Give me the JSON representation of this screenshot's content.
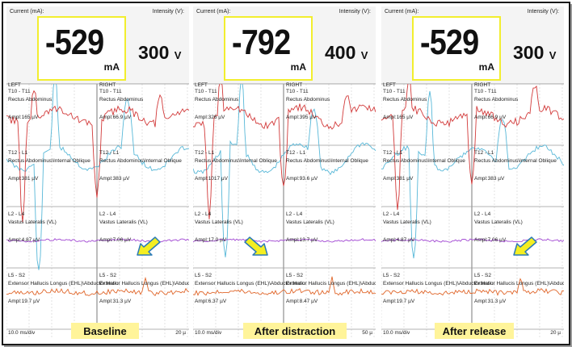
{
  "panels": [
    {
      "current_label": "Current (mA):",
      "intensity_label": "Intensity (V):",
      "current_value": "-529",
      "current_unit": "mA",
      "intensity_value": "300",
      "intensity_unit": "V",
      "left_side": "LEFT",
      "right_side": "RIGHT",
      "left_channels": [
        {
          "segment": "T10 - T11",
          "muscle": "Rectus Abdominus",
          "ampl": "Ampl:165 µV"
        },
        {
          "segment": "T12 - L1",
          "muscle": "Rectus Abdominus\\Internal Oblique",
          "ampl": "Ampl:381 µV"
        },
        {
          "segment": "L2 - L4",
          "muscle": "Vastus Lateralis (VL)",
          "ampl": "Ampl:4.87 µV"
        },
        {
          "segment": "L5 - S2",
          "muscle": "Extensor Hallucis Longus (EHL)\\Abductor Hallu",
          "ampl": "Ampl:19.7 µV"
        }
      ],
      "right_channels": [
        {
          "segment": "T10 - T11",
          "muscle": "Rectus Abdominus",
          "ampl": "Ampl:66.9 µV"
        },
        {
          "segment": "T12 - L1",
          "muscle": "Rectus Abdominus\\Internal Oblique",
          "ampl": "Ampl:383 µV"
        },
        {
          "segment": "L2 - L4",
          "muscle": "Vastus Lateralis (VL)",
          "ampl": "Ampl:7.06 µV"
        },
        {
          "segment": "L5 - S2",
          "muscle": "Extensor Hallucis Longus (EHL)\\Abductor Hallu",
          "ampl": "Ampl:31.3 µV"
        }
      ],
      "timebase": "10.0 ms/div",
      "sensitivity": "20 µ",
      "caption": "Baseline"
    },
    {
      "current_label": "Current (mA):",
      "intensity_label": "Intensity (V):",
      "current_value": "-792",
      "current_unit": "mA",
      "intensity_value": "400",
      "intensity_unit": "V",
      "left_side": "LEFT",
      "right_side": "RIGHT",
      "left_channels": [
        {
          "segment": "T10 - T11",
          "muscle": "Rectus Abdominus",
          "ampl": "Ampl:326 µV"
        },
        {
          "segment": "T12 - L1",
          "muscle": "Rectus Abdominus\\Internal Oblique",
          "ampl": "Ampl:1017 µV"
        },
        {
          "segment": "L2 - L4",
          "muscle": "Vastus Lateralis (VL)",
          "ampl": "Ampl:17.0 µV"
        },
        {
          "segment": "L5 - S2",
          "muscle": "Extensor Hallucis Longus (EHL)\\Abductor Hallu",
          "ampl": "Ampl:6.37 µV"
        }
      ],
      "right_channels": [
        {
          "segment": "T10 - T11",
          "muscle": "Rectus Abdominus",
          "ampl": "Ampl:395 µV"
        },
        {
          "segment": "T12 - L1",
          "muscle": "Rectus Abdominus\\Internal Oblique",
          "ampl": "Ampl:93.6 µV"
        },
        {
          "segment": "L2 - L4",
          "muscle": "Vastus Lateralis (VL)",
          "ampl": "Ampl:13.7 µV"
        },
        {
          "segment": "L5 - S2",
          "muscle": "Extensor Hallucis Longus (EHL)\\Abductor Hallu",
          "ampl": "Ampl:8.47 µV"
        }
      ],
      "timebase": "10.0 ms/div",
      "sensitivity": "50 µ",
      "caption": "After distraction"
    },
    {
      "current_label": "Current (mA):",
      "intensity_label": "Intensity (V):",
      "current_value": "-529",
      "current_unit": "mA",
      "intensity_value": "300",
      "intensity_unit": "V",
      "left_side": "LEFT",
      "right_side": "RIGHT",
      "left_channels": [
        {
          "segment": "T10 - T11",
          "muscle": "Rectus Abdominus",
          "ampl": "Ampl:165 µV"
        },
        {
          "segment": "T12 - L1",
          "muscle": "Rectus Abdominus\\Internal Oblique",
          "ampl": "Ampl:381 µV"
        },
        {
          "segment": "L2 - L4",
          "muscle": "Vastus Lateralis (VL)",
          "ampl": "Ampl:4.87 µV"
        },
        {
          "segment": "L5 - S2",
          "muscle": "Extensor Hallucis Longus (EHL)\\Abductor Hallu",
          "ampl": "Ampl:19.7 µV"
        }
      ],
      "right_channels": [
        {
          "segment": "T10 - T11",
          "muscle": "Rectus Abdominus",
          "ampl": "Ampl:66.9 µV"
        },
        {
          "segment": "T12 - L1",
          "muscle": "Rectus Abdominus\\Internal Oblique",
          "ampl": "Ampl:383 µV"
        },
        {
          "segment": "L2 - L4",
          "muscle": "Vastus Lateralis (VL)",
          "ampl": "Ampl:7.06 µV"
        },
        {
          "segment": "L5 - S2",
          "muscle": "Extensor Hallucis Longus (EHL)\\Abductor Hallu",
          "ampl": "Ampl:31.3 µV"
        }
      ],
      "timebase": "10.0 ms/div",
      "sensitivity": "20 µ",
      "caption": "After release"
    }
  ],
  "colors": {
    "rectus": "#d23a3a",
    "oblique": "#58b8d8",
    "vastus": "#a046d2",
    "ehl": "#e0662a",
    "arrow_fill": "#f4ee22",
    "arrow_stroke": "#2a7ab8",
    "highlight": "#fff49a",
    "box_border": "#f2ee2e"
  },
  "icons": {
    "arrow": "yellow-pointer-arrow-icon"
  }
}
